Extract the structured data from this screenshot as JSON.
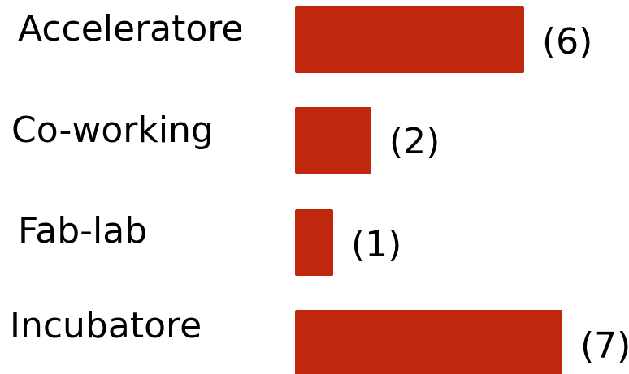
{
  "chart_data": {
    "type": "bar",
    "orientation": "horizontal",
    "categories": [
      "Acceleratore",
      "Co-working",
      "Fab-lab",
      "Incubatore"
    ],
    "values": [
      6,
      2,
      1,
      7
    ],
    "value_labels": [
      "(6)",
      "(2)",
      "(1)",
      "(7)"
    ],
    "title": "",
    "xlabel": "",
    "ylabel": "",
    "xlim": [
      0,
      7
    ],
    "grid": false,
    "legend": "none",
    "colors": {
      "bar": "#C0280E"
    }
  }
}
